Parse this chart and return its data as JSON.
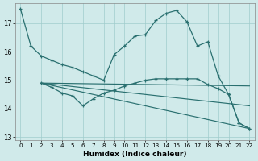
{
  "xlabel": "Humidex (Indice chaleur)",
  "background_color": "#d0eaea",
  "grid_color": "#a0cccc",
  "line_color": "#2a7070",
  "xlim": [
    -0.5,
    22.5
  ],
  "ylim": [
    12.9,
    17.7
  ],
  "yticks": [
    13,
    14,
    15,
    16,
    17
  ],
  "xticks": [
    0,
    1,
    2,
    3,
    4,
    5,
    6,
    7,
    8,
    9,
    10,
    11,
    12,
    13,
    14,
    15,
    16,
    17,
    18,
    19,
    20,
    21,
    22
  ],
  "lines": [
    {
      "x": [
        0,
        1,
        2,
        3,
        4,
        5,
        6,
        7,
        8,
        9,
        10,
        11,
        12,
        13,
        14,
        15,
        16,
        17,
        18,
        19,
        20,
        21,
        22
      ],
      "y": [
        17.5,
        16.2,
        15.85,
        15.7,
        15.55,
        15.45,
        15.3,
        15.15,
        15.0,
        15.9,
        16.2,
        16.55,
        16.6,
        17.1,
        17.35,
        17.45,
        17.05,
        16.2,
        16.35,
        15.15,
        14.5,
        13.5,
        13.3
      ],
      "has_marker": true
    },
    {
      "x": [
        2,
        3,
        4,
        5,
        6,
        7,
        8,
        9,
        10,
        11,
        12,
        13,
        14,
        15,
        16,
        17,
        18,
        19,
        20,
        21,
        22
      ],
      "y": [
        14.9,
        14.75,
        14.55,
        14.45,
        14.1,
        14.35,
        14.55,
        14.65,
        14.8,
        14.9,
        15.0,
        15.05,
        15.05,
        15.05,
        15.05,
        15.05,
        14.85,
        14.7,
        14.5,
        13.5,
        13.3
      ],
      "has_marker": true
    },
    {
      "x": [
        2,
        22
      ],
      "y": [
        14.9,
        14.8
      ],
      "has_marker": false
    },
    {
      "x": [
        2,
        22
      ],
      "y": [
        14.9,
        14.1
      ],
      "has_marker": false
    },
    {
      "x": [
        2,
        22
      ],
      "y": [
        14.9,
        13.3
      ],
      "has_marker": false
    }
  ]
}
